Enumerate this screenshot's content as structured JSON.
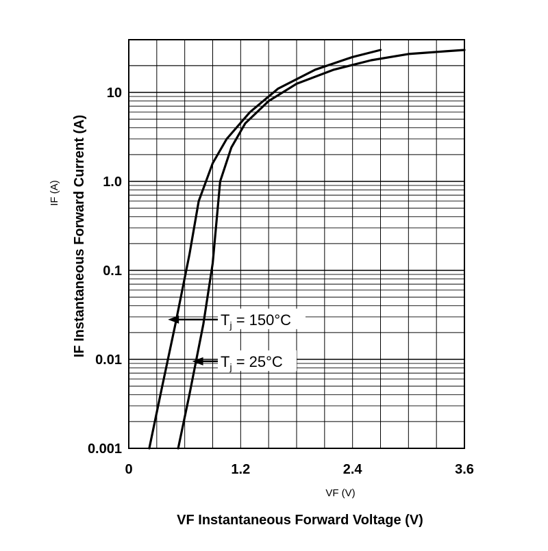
{
  "chart_data": {
    "type": "line",
    "title": "",
    "xlabel_main": "VF Instantaneous Forward Voltage (V)",
    "xlabel_sub": "VF (V)",
    "ylabel_main": "IF Instantaneous Forward Current (A)",
    "ylabel_sub": "IF (A)",
    "y_scale": "log",
    "xlim": [
      0,
      3.6
    ],
    "ylim": [
      0.001,
      30
    ],
    "x_ticks": [
      0,
      1.2,
      2.4,
      3.6
    ],
    "x_tick_labels": [
      "0",
      "1.2",
      "2.4",
      "3.6"
    ],
    "y_ticks": [
      0.001,
      0.01,
      0.1,
      1,
      10
    ],
    "y_tick_labels": [
      "0.001",
      "0.01",
      "0.1",
      "1.0",
      "10"
    ],
    "grid": true,
    "series": [
      {
        "name": "Tj = 150°C",
        "x": [
          0.22,
          0.35,
          0.5,
          0.65,
          0.75,
          0.9,
          1.05,
          1.3,
          1.6,
          2.0,
          2.4,
          2.7
        ],
        "y": [
          0.001,
          0.0045,
          0.025,
          0.15,
          0.6,
          1.6,
          3.0,
          6.0,
          11.0,
          18.0,
          25.0,
          30.0
        ]
      },
      {
        "name": "Tj = 25°C",
        "x": [
          0.53,
          0.65,
          0.8,
          0.9,
          0.98,
          1.1,
          1.25,
          1.5,
          1.8,
          2.2,
          2.6,
          3.0,
          3.4,
          3.6
        ],
        "y": [
          0.001,
          0.004,
          0.025,
          0.12,
          1.0,
          2.4,
          4.5,
          8.0,
          12.5,
          18.0,
          23.0,
          27.0,
          29.0,
          30.0
        ]
      }
    ],
    "annotations": [
      {
        "label": "Tj = 150°C",
        "base": "T",
        "sub": "j",
        "rest": " = 150°C",
        "target_x": 0.42,
        "target_y": 0.028
      },
      {
        "label": "Tj = 25°C",
        "base": "T",
        "sub": "j",
        "rest": " = 25°C",
        "target_x": 0.68,
        "target_y": 0.0095
      }
    ]
  }
}
